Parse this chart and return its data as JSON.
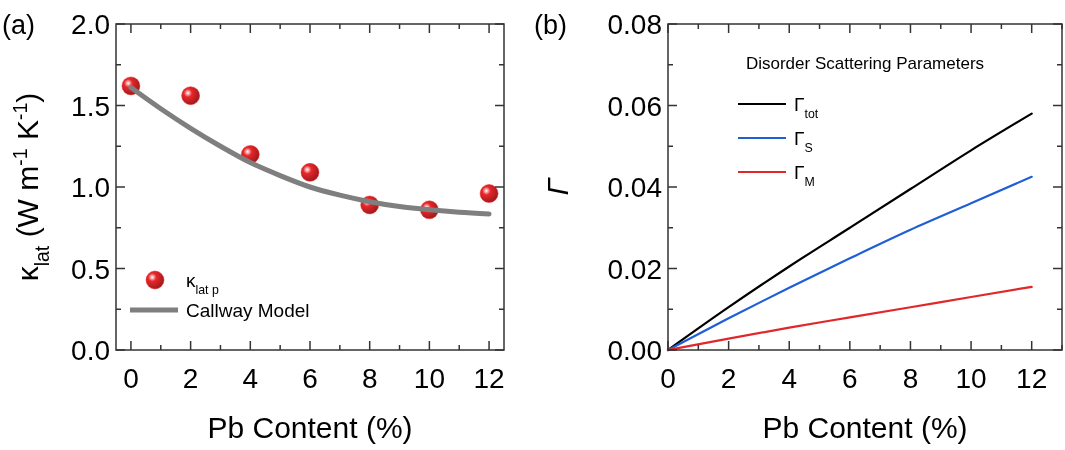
{
  "chart_data": [
    {
      "type": "scatter",
      "title": "(a)",
      "xlabel": "Pb Content (%)",
      "ylabel": "κ$_{lat}$ (W m$^{-1}$ K$^{-1}$)",
      "xlim": [
        -0.5,
        12.5
      ],
      "ylim": [
        0,
        2
      ],
      "xticks": [
        0,
        {
          "value": 1,
          "label": null
        },
        2,
        {
          "value": 3,
          "label": null
        },
        4,
        {
          "value": 5,
          "label": null
        },
        6,
        {
          "value": 7,
          "label": null
        },
        8,
        {
          "value": 9,
          "label": null
        },
        10,
        {
          "value": 11,
          "label": null
        },
        12
      ],
      "yticks": [
        {
          "value": 0,
          "label": "0.0"
        },
        {
          "value": 0.25,
          "label": null
        },
        {
          "value": 0.5,
          "label": "0.5"
        },
        {
          "value": 0.75,
          "label": null
        },
        {
          "value": 1,
          "label": "1.0"
        },
        {
          "value": 1.25,
          "label": null
        },
        {
          "value": 1.5,
          "label": "1.5"
        },
        {
          "value": 1.75,
          "label": null
        },
        {
          "value": 2,
          "label": "2.0"
        }
      ],
      "legend": "bottom left",
      "series": [
        {
          "name": "κ$_{lat p}$",
          "marker": "circle",
          "color": "#e8262a",
          "x": [
            0,
            2,
            4,
            6,
            8,
            10,
            12
          ],
          "values": [
            1.62,
            1.56,
            1.2,
            1.09,
            0.89,
            0.86,
            0.96
          ]
        },
        {
          "name": "Callway Model",
          "type": "line",
          "color": "#7f7f7f",
          "x": [
            0,
            1,
            2,
            3,
            4,
            5,
            6,
            7,
            8,
            9,
            10,
            11,
            12
          ],
          "values": [
            1.61,
            1.48,
            1.36,
            1.25,
            1.15,
            1.07,
            1.0,
            0.95,
            0.91,
            0.88,
            0.86,
            0.845,
            0.835
          ]
        }
      ]
    },
    {
      "type": "line",
      "title": "(b)",
      "xlabel": "Pb Content (%)",
      "ylabel": "Γ",
      "legend_title": "Disorder Scattering Parameters",
      "xlim": [
        0,
        13
      ],
      "ylim": [
        0,
        0.08
      ],
      "xticks": [
        0,
        {
          "value": 1,
          "label": null
        },
        2,
        {
          "value": 3,
          "label": null
        },
        4,
        {
          "value": 5,
          "label": null
        },
        6,
        {
          "value": 7,
          "label": null
        },
        8,
        {
          "value": 9,
          "label": null
        },
        10,
        {
          "value": 11,
          "label": null
        },
        12,
        {
          "value": 13,
          "label": null
        }
      ],
      "yticks": [
        {
          "value": 0,
          "label": "0.00"
        },
        {
          "value": 0.01,
          "label": null
        },
        {
          "value": 0.02,
          "label": "0.02"
        },
        {
          "value": 0.03,
          "label": null
        },
        {
          "value": 0.04,
          "label": "0.04"
        },
        {
          "value": 0.05,
          "label": null
        },
        {
          "value": 0.06,
          "label": "0.06"
        },
        {
          "value": 0.07,
          "label": null
        },
        {
          "value": 0.08,
          "label": "0.08"
        }
      ],
      "legend": "top left",
      "series": [
        {
          "name": "Γ$_{tot}$",
          "color": "#000000",
          "x": [
            0,
            2,
            4,
            6,
            8,
            10,
            12
          ],
          "values": [
            0,
            0.0105,
            0.0205,
            0.03,
            0.0395,
            0.049,
            0.058
          ]
        },
        {
          "name": "Γ$_{S}$",
          "color": "#1f5fd6",
          "x": [
            0,
            2,
            4,
            6,
            8,
            10,
            12
          ],
          "values": [
            0,
            0.0078,
            0.0153,
            0.0225,
            0.0295,
            0.036,
            0.0425
          ]
        },
        {
          "name": "Γ$_{M}$",
          "color": "#e0282a",
          "x": [
            0,
            2,
            4,
            6,
            8,
            10,
            12
          ],
          "values": [
            0,
            0.0028,
            0.0055,
            0.008,
            0.0105,
            0.013,
            0.0155
          ]
        }
      ]
    }
  ]
}
